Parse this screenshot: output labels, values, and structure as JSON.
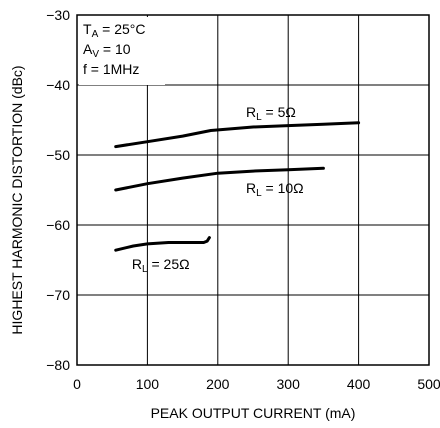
{
  "chart_data": {
    "type": "line",
    "title": "",
    "xlabel": "PEAK OUTPUT CURRENT (mA)",
    "ylabel": "HIGHEST HARMONIC DISTORTION (dBc)",
    "xlim": [
      0,
      500
    ],
    "ylim": [
      -80,
      -30
    ],
    "xticks": [
      0,
      100,
      200,
      300,
      400,
      500
    ],
    "yticks": [
      -30,
      -40,
      -50,
      -60,
      -70,
      -80
    ],
    "xtick_labels": [
      "0",
      "100",
      "200",
      "300",
      "400",
      "500"
    ],
    "ytick_labels": [
      "−30",
      "−40",
      "−50",
      "−60",
      "−70",
      "−80"
    ],
    "grid": true,
    "conditions": [
      {
        "main": "T",
        "sub": "A",
        "rest": " = 25°C"
      },
      {
        "main": "A",
        "sub": "V",
        "rest": " = 10"
      },
      {
        "main": "f = 1MHz",
        "sub": "",
        "rest": ""
      }
    ],
    "series": [
      {
        "label_main": "R",
        "label_sub": "L",
        "label_rest": " = 5Ω",
        "label_at": [
          240,
          -44.6
        ],
        "x": [
          55,
          100,
          150,
          190,
          250,
          300,
          350,
          400
        ],
        "y": [
          -48.8,
          -48.1,
          -47.3,
          -46.5,
          -46.0,
          -45.8,
          -45.6,
          -45.4
        ]
      },
      {
        "label_main": "R",
        "label_sub": "L",
        "label_rest": " = 10Ω",
        "label_at": [
          240,
          -55.4
        ],
        "x": [
          55,
          100,
          150,
          200,
          250,
          300,
          350
        ],
        "y": [
          -55.0,
          -54.1,
          -53.3,
          -52.6,
          -52.3,
          -52.1,
          -51.9
        ]
      },
      {
        "label_main": "R",
        "label_sub": "L",
        "label_rest": " = 25Ω",
        "label_at": [
          78,
          -66.3
        ],
        "x": [
          55,
          80,
          100,
          130,
          160,
          180,
          185,
          188
        ],
        "y": [
          -63.6,
          -63.0,
          -62.7,
          -62.5,
          -62.5,
          -62.5,
          -62.3,
          -61.8
        ]
      }
    ]
  }
}
